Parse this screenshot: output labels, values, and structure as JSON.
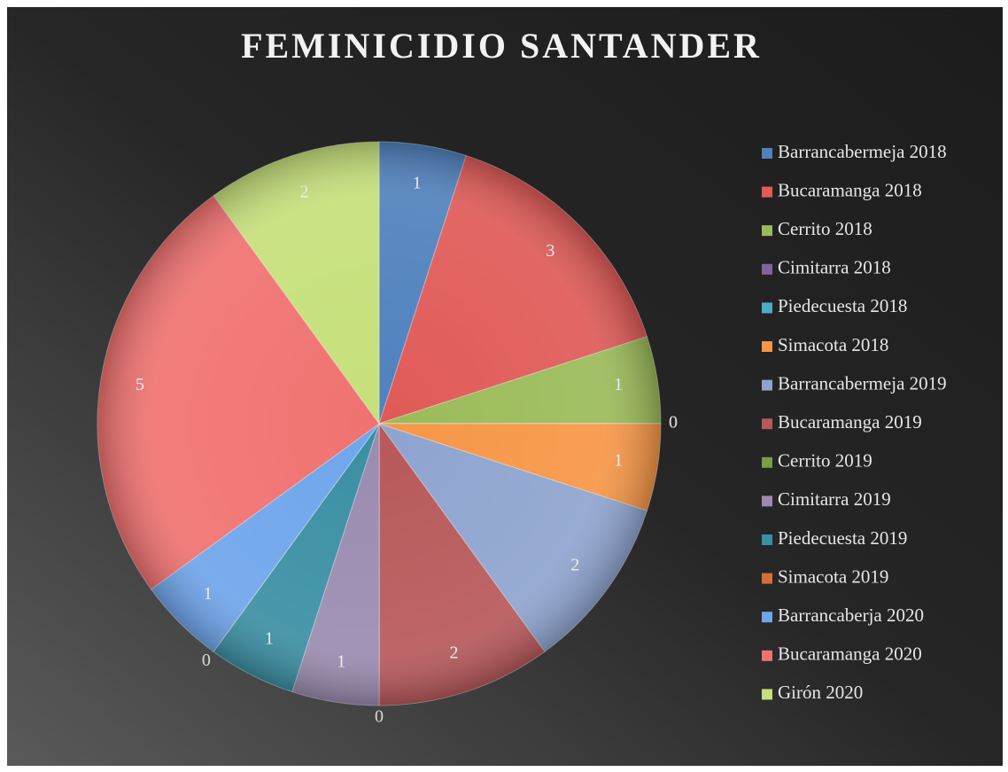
{
  "chart_data": {
    "type": "pie",
    "title": "FEMINICIDIO SANTANDER",
    "categories": [
      "Barrancabermeja 2018",
      "Bucaramanga 2018",
      "Cerrito 2018",
      "Cimitarra 2018",
      "Piedecuesta 2018",
      "Simacota 2018",
      "Barrancabermeja 2019",
      "Bucaramanga 2019",
      "Cerrito 2019",
      "Cimitarra 2019",
      "Piedecuesta 2019",
      "Simacota 2019",
      "Barrancaberja 2020",
      "Bucaramanga 2020",
      "Girón 2020"
    ],
    "values": [
      1,
      3,
      1,
      0,
      0,
      1,
      2,
      2,
      0,
      1,
      1,
      0,
      1,
      5,
      2
    ],
    "colors": [
      "#4f81bd",
      "#e05a57",
      "#9bbb59",
      "#8064a2",
      "#4bacc6",
      "#f79646",
      "#8ea4cf",
      "#b8585a",
      "#7f9a48",
      "#9a8bb0",
      "#3a8fa3",
      "#d3703a",
      "#6fa5ec",
      "#f07270",
      "#c6e07a"
    ],
    "legend": "right"
  }
}
